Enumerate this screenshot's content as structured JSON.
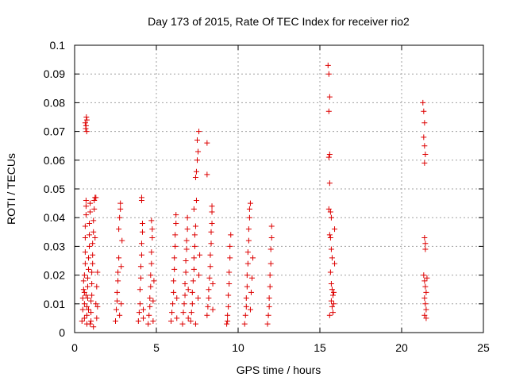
{
  "chart_data": {
    "type": "scatter",
    "title": "Day 173 of 2015, Rate Of TEC Index for receiver rio2",
    "xlabel": "GPS time / hours",
    "ylabel": "ROTI / TECUs",
    "xlim": [
      0,
      25
    ],
    "ylim": [
      0,
      0.1
    ],
    "xticks": [
      "0",
      "5",
      "10",
      "15",
      "20",
      "25"
    ],
    "yticks": [
      "0",
      "0.01",
      "0.02",
      "0.03",
      "0.04",
      "0.05",
      "0.06",
      "0.07",
      "0.08",
      "0.09",
      "0.1"
    ],
    "grid": true,
    "legend": "none",
    "marker": "plus",
    "color": "#dd0000",
    "points": [
      [
        0.65,
        0.073
      ],
      [
        0.7,
        0.072
      ],
      [
        0.75,
        0.074
      ],
      [
        0.68,
        0.071
      ],
      [
        0.72,
        0.075
      ],
      [
        0.74,
        0.07
      ],
      [
        0.45,
        0.004
      ],
      [
        0.5,
        0.008
      ],
      [
        0.5,
        0.012
      ],
      [
        0.55,
        0.015
      ],
      [
        0.55,
        0.018
      ],
      [
        0.6,
        0.005
      ],
      [
        0.6,
        0.01
      ],
      [
        0.6,
        0.014
      ],
      [
        0.6,
        0.02
      ],
      [
        0.65,
        0.024
      ],
      [
        0.65,
        0.028
      ],
      [
        0.65,
        0.033
      ],
      [
        0.65,
        0.037
      ],
      [
        0.7,
        0.041
      ],
      [
        0.7,
        0.044
      ],
      [
        0.7,
        0.046
      ],
      [
        0.75,
        0.003
      ],
      [
        0.75,
        0.006
      ],
      [
        0.75,
        0.009
      ],
      [
        0.8,
        0.012
      ],
      [
        0.8,
        0.016
      ],
      [
        0.8,
        0.019
      ],
      [
        0.85,
        0.022
      ],
      [
        0.85,
        0.026
      ],
      [
        0.9,
        0.03
      ],
      [
        0.9,
        0.034
      ],
      [
        0.9,
        0.038
      ],
      [
        0.95,
        0.042
      ],
      [
        0.95,
        0.045
      ],
      [
        1.0,
        0.004
      ],
      [
        1.0,
        0.007
      ],
      [
        1.0,
        0.011
      ],
      [
        1.05,
        0.013
      ],
      [
        1.05,
        0.017
      ],
      [
        1.05,
        0.021
      ],
      [
        1.1,
        0.024
      ],
      [
        1.1,
        0.027
      ],
      [
        1.1,
        0.031
      ],
      [
        1.15,
        0.035
      ],
      [
        1.15,
        0.039
      ],
      [
        1.2,
        0.043
      ],
      [
        1.2,
        0.046
      ],
      [
        1.25,
        0.047
      ],
      [
        1.3,
        0.047
      ],
      [
        1.3,
        0.01
      ],
      [
        1.35,
        0.005
      ],
      [
        1.35,
        0.016
      ],
      [
        1.4,
        0.009
      ],
      [
        1.4,
        0.021
      ],
      [
        0.85,
        0.008
      ],
      [
        0.95,
        0.003
      ],
      [
        1.15,
        0.002
      ],
      [
        0.7,
        0.013
      ],
      [
        1.25,
        0.033
      ],
      [
        2.5,
        0.004
      ],
      [
        2.55,
        0.008
      ],
      [
        2.6,
        0.011
      ],
      [
        2.6,
        0.014
      ],
      [
        2.65,
        0.018
      ],
      [
        2.65,
        0.021
      ],
      [
        2.7,
        0.026
      ],
      [
        2.7,
        0.036
      ],
      [
        2.75,
        0.04
      ],
      [
        2.8,
        0.043
      ],
      [
        2.8,
        0.045
      ],
      [
        2.75,
        0.006
      ],
      [
        2.85,
        0.01
      ],
      [
        2.85,
        0.023
      ],
      [
        2.9,
        0.032
      ],
      [
        3.9,
        0.004
      ],
      [
        3.95,
        0.007
      ],
      [
        4.0,
        0.01
      ],
      [
        4.0,
        0.015
      ],
      [
        4.05,
        0.019
      ],
      [
        4.05,
        0.023
      ],
      [
        4.1,
        0.027
      ],
      [
        4.1,
        0.031
      ],
      [
        4.15,
        0.035
      ],
      [
        4.15,
        0.038
      ],
      [
        4.1,
        0.046
      ],
      [
        4.1,
        0.047
      ],
      [
        4.2,
        0.005
      ],
      [
        4.2,
        0.008
      ],
      [
        4.5,
        0.003
      ],
      [
        4.55,
        0.006
      ],
      [
        4.6,
        0.009
      ],
      [
        4.6,
        0.012
      ],
      [
        4.65,
        0.016
      ],
      [
        4.65,
        0.02
      ],
      [
        4.7,
        0.024
      ],
      [
        4.7,
        0.028
      ],
      [
        4.75,
        0.033
      ],
      [
        4.75,
        0.036
      ],
      [
        4.7,
        0.039
      ],
      [
        4.8,
        0.004
      ],
      [
        4.8,
        0.011
      ],
      [
        4.85,
        0.018
      ],
      [
        5.9,
        0.004
      ],
      [
        5.95,
        0.007
      ],
      [
        6.0,
        0.01
      ],
      [
        6.05,
        0.014
      ],
      [
        6.05,
        0.018
      ],
      [
        6.1,
        0.022
      ],
      [
        6.1,
        0.026
      ],
      [
        6.15,
        0.03
      ],
      [
        6.15,
        0.034
      ],
      [
        6.2,
        0.038
      ],
      [
        6.2,
        0.041
      ],
      [
        6.25,
        0.005
      ],
      [
        6.25,
        0.012
      ],
      [
        6.6,
        0.003
      ],
      [
        6.65,
        0.007
      ],
      [
        6.7,
        0.01
      ],
      [
        6.75,
        0.013
      ],
      [
        6.75,
        0.017
      ],
      [
        6.8,
        0.021
      ],
      [
        6.8,
        0.025
      ],
      [
        6.85,
        0.029
      ],
      [
        6.85,
        0.032
      ],
      [
        6.9,
        0.036
      ],
      [
        6.9,
        0.04
      ],
      [
        6.95,
        0.005
      ],
      [
        6.95,
        0.015
      ],
      [
        7.1,
        0.004
      ],
      [
        7.15,
        0.007
      ],
      [
        7.2,
        0.01
      ],
      [
        7.2,
        0.014
      ],
      [
        7.25,
        0.018
      ],
      [
        7.3,
        0.022
      ],
      [
        7.3,
        0.026
      ],
      [
        7.35,
        0.03
      ],
      [
        7.35,
        0.034
      ],
      [
        7.4,
        0.037
      ],
      [
        7.3,
        0.043
      ],
      [
        7.45,
        0.046
      ],
      [
        7.4,
        0.054
      ],
      [
        7.45,
        0.056
      ],
      [
        7.5,
        0.06
      ],
      [
        7.55,
        0.063
      ],
      [
        7.5,
        0.067
      ],
      [
        7.6,
        0.07
      ],
      [
        7.4,
        0.003
      ],
      [
        7.55,
        0.012
      ],
      [
        7.6,
        0.02
      ],
      [
        7.65,
        0.027
      ],
      [
        8.1,
        0.006
      ],
      [
        8.15,
        0.009
      ],
      [
        8.2,
        0.012
      ],
      [
        8.2,
        0.015
      ],
      [
        8.25,
        0.019
      ],
      [
        8.3,
        0.023
      ],
      [
        8.3,
        0.027
      ],
      [
        8.35,
        0.031
      ],
      [
        8.35,
        0.035
      ],
      [
        8.4,
        0.038
      ],
      [
        8.4,
        0.042
      ],
      [
        8.4,
        0.044
      ],
      [
        8.1,
        0.055
      ],
      [
        8.1,
        0.066
      ],
      [
        8.45,
        0.008
      ],
      [
        8.45,
        0.017
      ],
      [
        9.3,
        0.003
      ],
      [
        9.35,
        0.006
      ],
      [
        9.4,
        0.009
      ],
      [
        9.4,
        0.013
      ],
      [
        9.45,
        0.017
      ],
      [
        9.45,
        0.021
      ],
      [
        9.5,
        0.026
      ],
      [
        9.5,
        0.03
      ],
      [
        9.55,
        0.034
      ],
      [
        9.35,
        0.004
      ],
      [
        10.4,
        0.003
      ],
      [
        10.45,
        0.006
      ],
      [
        10.5,
        0.009
      ],
      [
        10.5,
        0.012
      ],
      [
        10.55,
        0.016
      ],
      [
        10.55,
        0.02
      ],
      [
        10.6,
        0.024
      ],
      [
        10.6,
        0.028
      ],
      [
        10.65,
        0.032
      ],
      [
        10.65,
        0.036
      ],
      [
        10.7,
        0.04
      ],
      [
        10.7,
        0.043
      ],
      [
        10.75,
        0.045
      ],
      [
        10.75,
        0.008
      ],
      [
        10.8,
        0.014
      ],
      [
        10.85,
        0.019
      ],
      [
        10.9,
        0.026
      ],
      [
        11.8,
        0.003
      ],
      [
        11.85,
        0.006
      ],
      [
        11.9,
        0.009
      ],
      [
        11.9,
        0.012
      ],
      [
        11.95,
        0.016
      ],
      [
        11.95,
        0.02
      ],
      [
        12.0,
        0.024
      ],
      [
        12.0,
        0.029
      ],
      [
        12.05,
        0.033
      ],
      [
        12.05,
        0.037
      ],
      [
        15.5,
        0.093
      ],
      [
        15.55,
        0.09
      ],
      [
        15.6,
        0.082
      ],
      [
        15.55,
        0.077
      ],
      [
        15.6,
        0.062
      ],
      [
        15.55,
        0.061
      ],
      [
        15.6,
        0.052
      ],
      [
        15.55,
        0.043
      ],
      [
        15.65,
        0.042
      ],
      [
        15.7,
        0.04
      ],
      [
        15.6,
        0.034
      ],
      [
        15.65,
        0.033
      ],
      [
        15.7,
        0.029
      ],
      [
        15.75,
        0.026
      ],
      [
        15.65,
        0.021
      ],
      [
        15.7,
        0.017
      ],
      [
        15.75,
        0.015
      ],
      [
        15.8,
        0.013
      ],
      [
        15.7,
        0.011
      ],
      [
        15.75,
        0.009
      ],
      [
        15.8,
        0.007
      ],
      [
        15.85,
        0.01
      ],
      [
        15.85,
        0.014
      ],
      [
        15.9,
        0.024
      ],
      [
        15.9,
        0.036
      ],
      [
        15.6,
        0.006
      ],
      [
        21.3,
        0.08
      ],
      [
        21.35,
        0.077
      ],
      [
        21.4,
        0.073
      ],
      [
        21.35,
        0.068
      ],
      [
        21.4,
        0.065
      ],
      [
        21.45,
        0.062
      ],
      [
        21.4,
        0.059
      ],
      [
        21.4,
        0.033
      ],
      [
        21.45,
        0.031
      ],
      [
        21.45,
        0.029
      ],
      [
        21.35,
        0.02
      ],
      [
        21.4,
        0.018
      ],
      [
        21.45,
        0.016
      ],
      [
        21.5,
        0.014
      ],
      [
        21.4,
        0.012
      ],
      [
        21.45,
        0.01
      ],
      [
        21.5,
        0.008
      ],
      [
        21.4,
        0.006
      ],
      [
        21.5,
        0.005
      ],
      [
        21.55,
        0.019
      ]
    ]
  }
}
